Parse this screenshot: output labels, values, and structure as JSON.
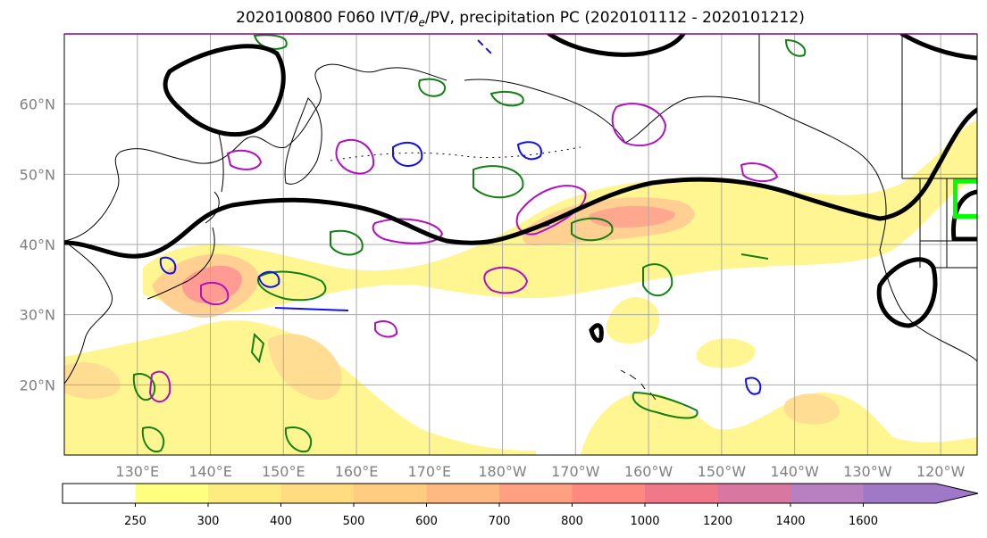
{
  "chart_data": {
    "type": "map",
    "title": "2020100800 F060 IVT/θe/PV, precipitation PC (2020101112 - 2020101212)",
    "title_parts": {
      "prefix": "2020100800 F060 IVT/",
      "theta": "θ",
      "theta_sub": "e",
      "suffix": "/PV, precipitation PC (2020101112 - 2020101212)"
    },
    "lon_range": [
      120,
      245
    ],
    "lat_range": [
      10,
      70
    ],
    "x_tick_labels": [
      "130°E",
      "140°E",
      "150°E",
      "160°E",
      "170°E",
      "180°W",
      "170°W",
      "160°W",
      "150°W",
      "140°W",
      "130°W",
      "120°W"
    ],
    "x_tick_lons": [
      130,
      140,
      150,
      160,
      170,
      180,
      190,
      200,
      210,
      220,
      230,
      240
    ],
    "y_tick_labels": [
      "20°N",
      "30°N",
      "40°N",
      "50°N",
      "60°N"
    ],
    "y_tick_lats": [
      20,
      30,
      40,
      50,
      60
    ],
    "grid": true,
    "colorbar": {
      "levels": [
        250,
        300,
        400,
        500,
        600,
        700,
        800,
        1000,
        1200,
        1400,
        1600
      ],
      "labels": [
        "250",
        "300",
        "400",
        "500",
        "600",
        "700",
        "800",
        "1000",
        "1200",
        "1400",
        "1600"
      ],
      "colors": [
        "#ffffff",
        "#ffff80",
        "#ffec80",
        "#ffdc80",
        "#ffcc80",
        "#ffb880",
        "#ffa080",
        "#ff8880",
        "#f07888",
        "#d878a0",
        "#b880c0",
        "#a078c8"
      ],
      "extend": "max"
    },
    "highlight_box": {
      "lon": [
        242,
        248
      ],
      "lat": [
        44,
        49
      ],
      "color": "#00ff00"
    }
  }
}
